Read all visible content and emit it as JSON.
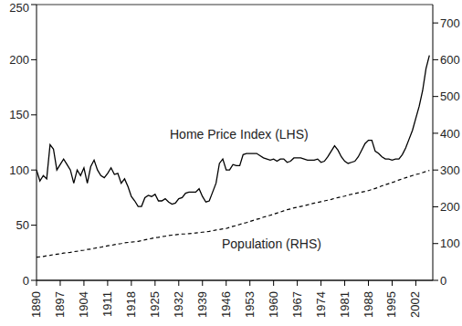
{
  "chart_data": {
    "type": "line",
    "x": [
      1890,
      1891,
      1892,
      1893,
      1894,
      1895,
      1896,
      1897,
      1898,
      1899,
      1900,
      1901,
      1902,
      1903,
      1904,
      1905,
      1906,
      1907,
      1908,
      1909,
      1910,
      1911,
      1912,
      1913,
      1914,
      1915,
      1916,
      1917,
      1918,
      1919,
      1920,
      1921,
      1922,
      1923,
      1924,
      1925,
      1926,
      1927,
      1928,
      1929,
      1930,
      1931,
      1932,
      1933,
      1934,
      1935,
      1936,
      1937,
      1938,
      1939,
      1940,
      1941,
      1942,
      1943,
      1944,
      1945,
      1946,
      1947,
      1948,
      1949,
      1950,
      1951,
      1952,
      1953,
      1954,
      1955,
      1956,
      1957,
      1958,
      1959,
      1960,
      1961,
      1962,
      1963,
      1964,
      1965,
      1966,
      1967,
      1968,
      1969,
      1970,
      1971,
      1972,
      1973,
      1974,
      1975,
      1976,
      1977,
      1978,
      1979,
      1980,
      1981,
      1982,
      1983,
      1984,
      1985,
      1986,
      1987,
      1988,
      1989,
      1990,
      1991,
      1992,
      1993,
      1994,
      1995,
      1996,
      1997,
      1998,
      1999,
      2000,
      2001,
      2002,
      2003,
      2004,
      2005,
      2006
    ],
    "series": [
      {
        "name": "Home Price Index (LHS)",
        "color": "#000000",
        "line_style": "solid",
        "marker": "none",
        "values": [
          100,
          90,
          95,
          92,
          123,
          119,
          100,
          105,
          110,
          105,
          100,
          88,
          100,
          95,
          102,
          88,
          103,
          109,
          100,
          95,
          93,
          97,
          102,
          96,
          97,
          88,
          92,
          85,
          76,
          72,
          67,
          67,
          75,
          77,
          76,
          78,
          72,
          72,
          74,
          71,
          69,
          70,
          74,
          75,
          79,
          80,
          80,
          80,
          83,
          76,
          71,
          72,
          80,
          88,
          106,
          110,
          100,
          100,
          105,
          104,
          104,
          114,
          115,
          115,
          115,
          115,
          113,
          111,
          110,
          109,
          110,
          108,
          110,
          110,
          107,
          108,
          111,
          111,
          111,
          110,
          109,
          109,
          109,
          110,
          107,
          108,
          112,
          117,
          122,
          118,
          112,
          108,
          106,
          107,
          108,
          112,
          118,
          124,
          127,
          127,
          117,
          115,
          112,
          110,
          110,
          109,
          110,
          110,
          114,
          120,
          128,
          136,
          147,
          158,
          172,
          192,
          204
        ]
      },
      {
        "name": "Population (RHS)",
        "color": "#000000",
        "line_style": "dashed",
        "marker": "none",
        "axis": "y2",
        "values": [
          63,
          64,
          65,
          67,
          68,
          70,
          71,
          72,
          74,
          75,
          76,
          78,
          79,
          81,
          82,
          84,
          85,
          87,
          89,
          90,
          92,
          94,
          95,
          97,
          99,
          100,
          102,
          103,
          104,
          105,
          106,
          108,
          110,
          112,
          114,
          116,
          117,
          119,
          120,
          122,
          123,
          124,
          125,
          126,
          126,
          127,
          128,
          129,
          130,
          131,
          132,
          133,
          135,
          137,
          138,
          140,
          141,
          144,
          147,
          149,
          152,
          155,
          157,
          160,
          163,
          166,
          168,
          172,
          174,
          177,
          180,
          183,
          186,
          189,
          192,
          194,
          197,
          199,
          201,
          203,
          205,
          208,
          210,
          212,
          214,
          216,
          218,
          220,
          223,
          225,
          227,
          229,
          232,
          234,
          236,
          238,
          240,
          242,
          244,
          247,
          250,
          253,
          257,
          260,
          263,
          266,
          269,
          273,
          276,
          279,
          282,
          285,
          288,
          290,
          293,
          296,
          299
        ]
      }
    ],
    "xlim": [
      1890,
      2007
    ],
    "xticks": [
      1890,
      1897,
      1904,
      1911,
      1918,
      1925,
      1932,
      1939,
      1946,
      1953,
      1960,
      1967,
      1974,
      1981,
      1988,
      1995,
      2002
    ],
    "ylim": [
      0,
      250
    ],
    "yticks": [
      0,
      50,
      100,
      150,
      200,
      250
    ],
    "y2lim": [
      0,
      750
    ],
    "y2ticks": [
      0,
      100,
      200,
      300,
      400,
      500,
      600,
      700
    ],
    "grid": true
  }
}
